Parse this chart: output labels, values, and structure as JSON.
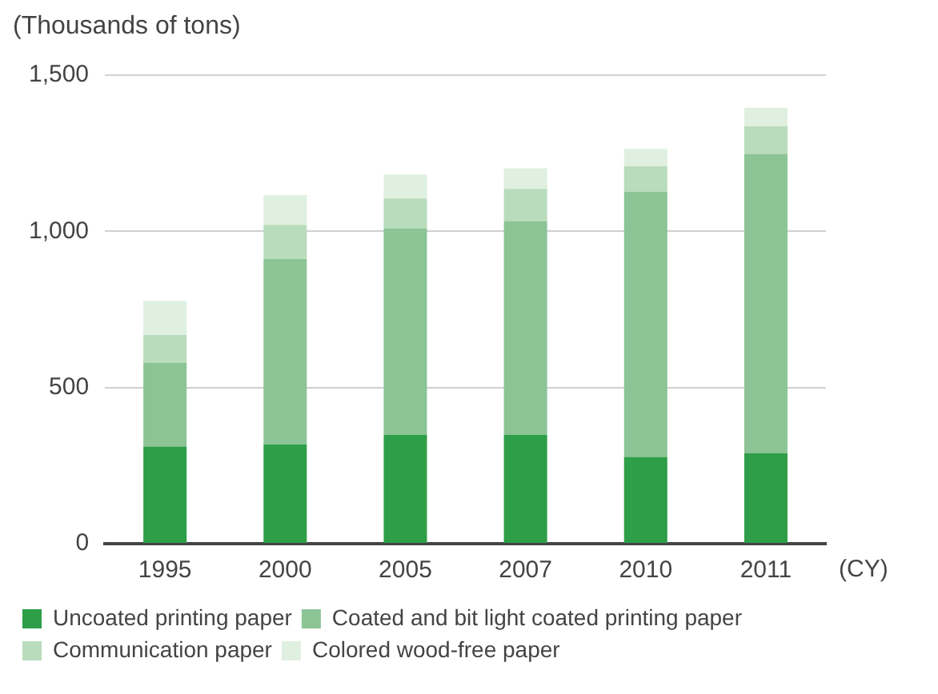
{
  "chart_data": {
    "type": "bar",
    "stacked": true,
    "ylabel": "(Thousands of tons)",
    "xlabel": "(CY)",
    "categories": [
      "1995",
      "2000",
      "2005",
      "2007",
      "2010",
      "2011"
    ],
    "series": [
      {
        "name": "Uncoated printing paper",
        "color": "#2e9e48",
        "values": [
          311,
          318,
          348,
          348,
          278,
          289
        ]
      },
      {
        "name": "Coated and bit light coated printing paper",
        "color": "#8cc495",
        "values": [
          268,
          593,
          662,
          685,
          848,
          959
        ]
      },
      {
        "name": "Communication paper",
        "color": "#b8dcbc",
        "values": [
          89,
          110,
          95,
          103,
          82,
          88
        ]
      },
      {
        "name": "Colored wood-free paper",
        "color": "#dff0e0",
        "values": [
          109,
          95,
          77,
          66,
          56,
          60
        ]
      }
    ],
    "ylim": [
      0,
      1500
    ],
    "yticks": [
      {
        "value": 0,
        "label": "0"
      },
      {
        "value": 500,
        "label": "500"
      },
      {
        "value": 1000,
        "label": "1,000"
      },
      {
        "value": 1500,
        "label": "1,500"
      }
    ],
    "grid": "y",
    "legend": "bottom"
  }
}
